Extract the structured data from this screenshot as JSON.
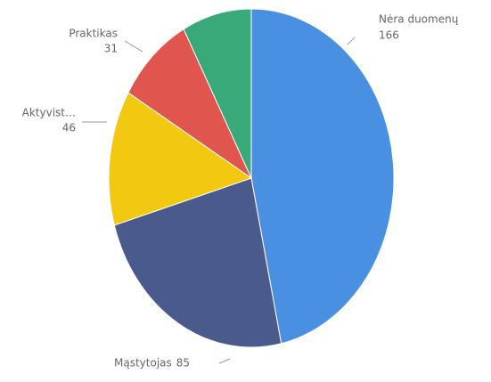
{
  "chart_data": {
    "type": "pie",
    "categories": [
      "Nėra duomenų",
      "Mąstytojas",
      "Aktyvist…",
      "Praktikas",
      null
    ],
    "values": [
      166,
      85,
      46,
      31,
      28
    ],
    "colors": [
      "#4a90e2",
      "#4a5a8c",
      "#f2c811",
      "#e0564f",
      "#3aa97a"
    ]
  }
}
